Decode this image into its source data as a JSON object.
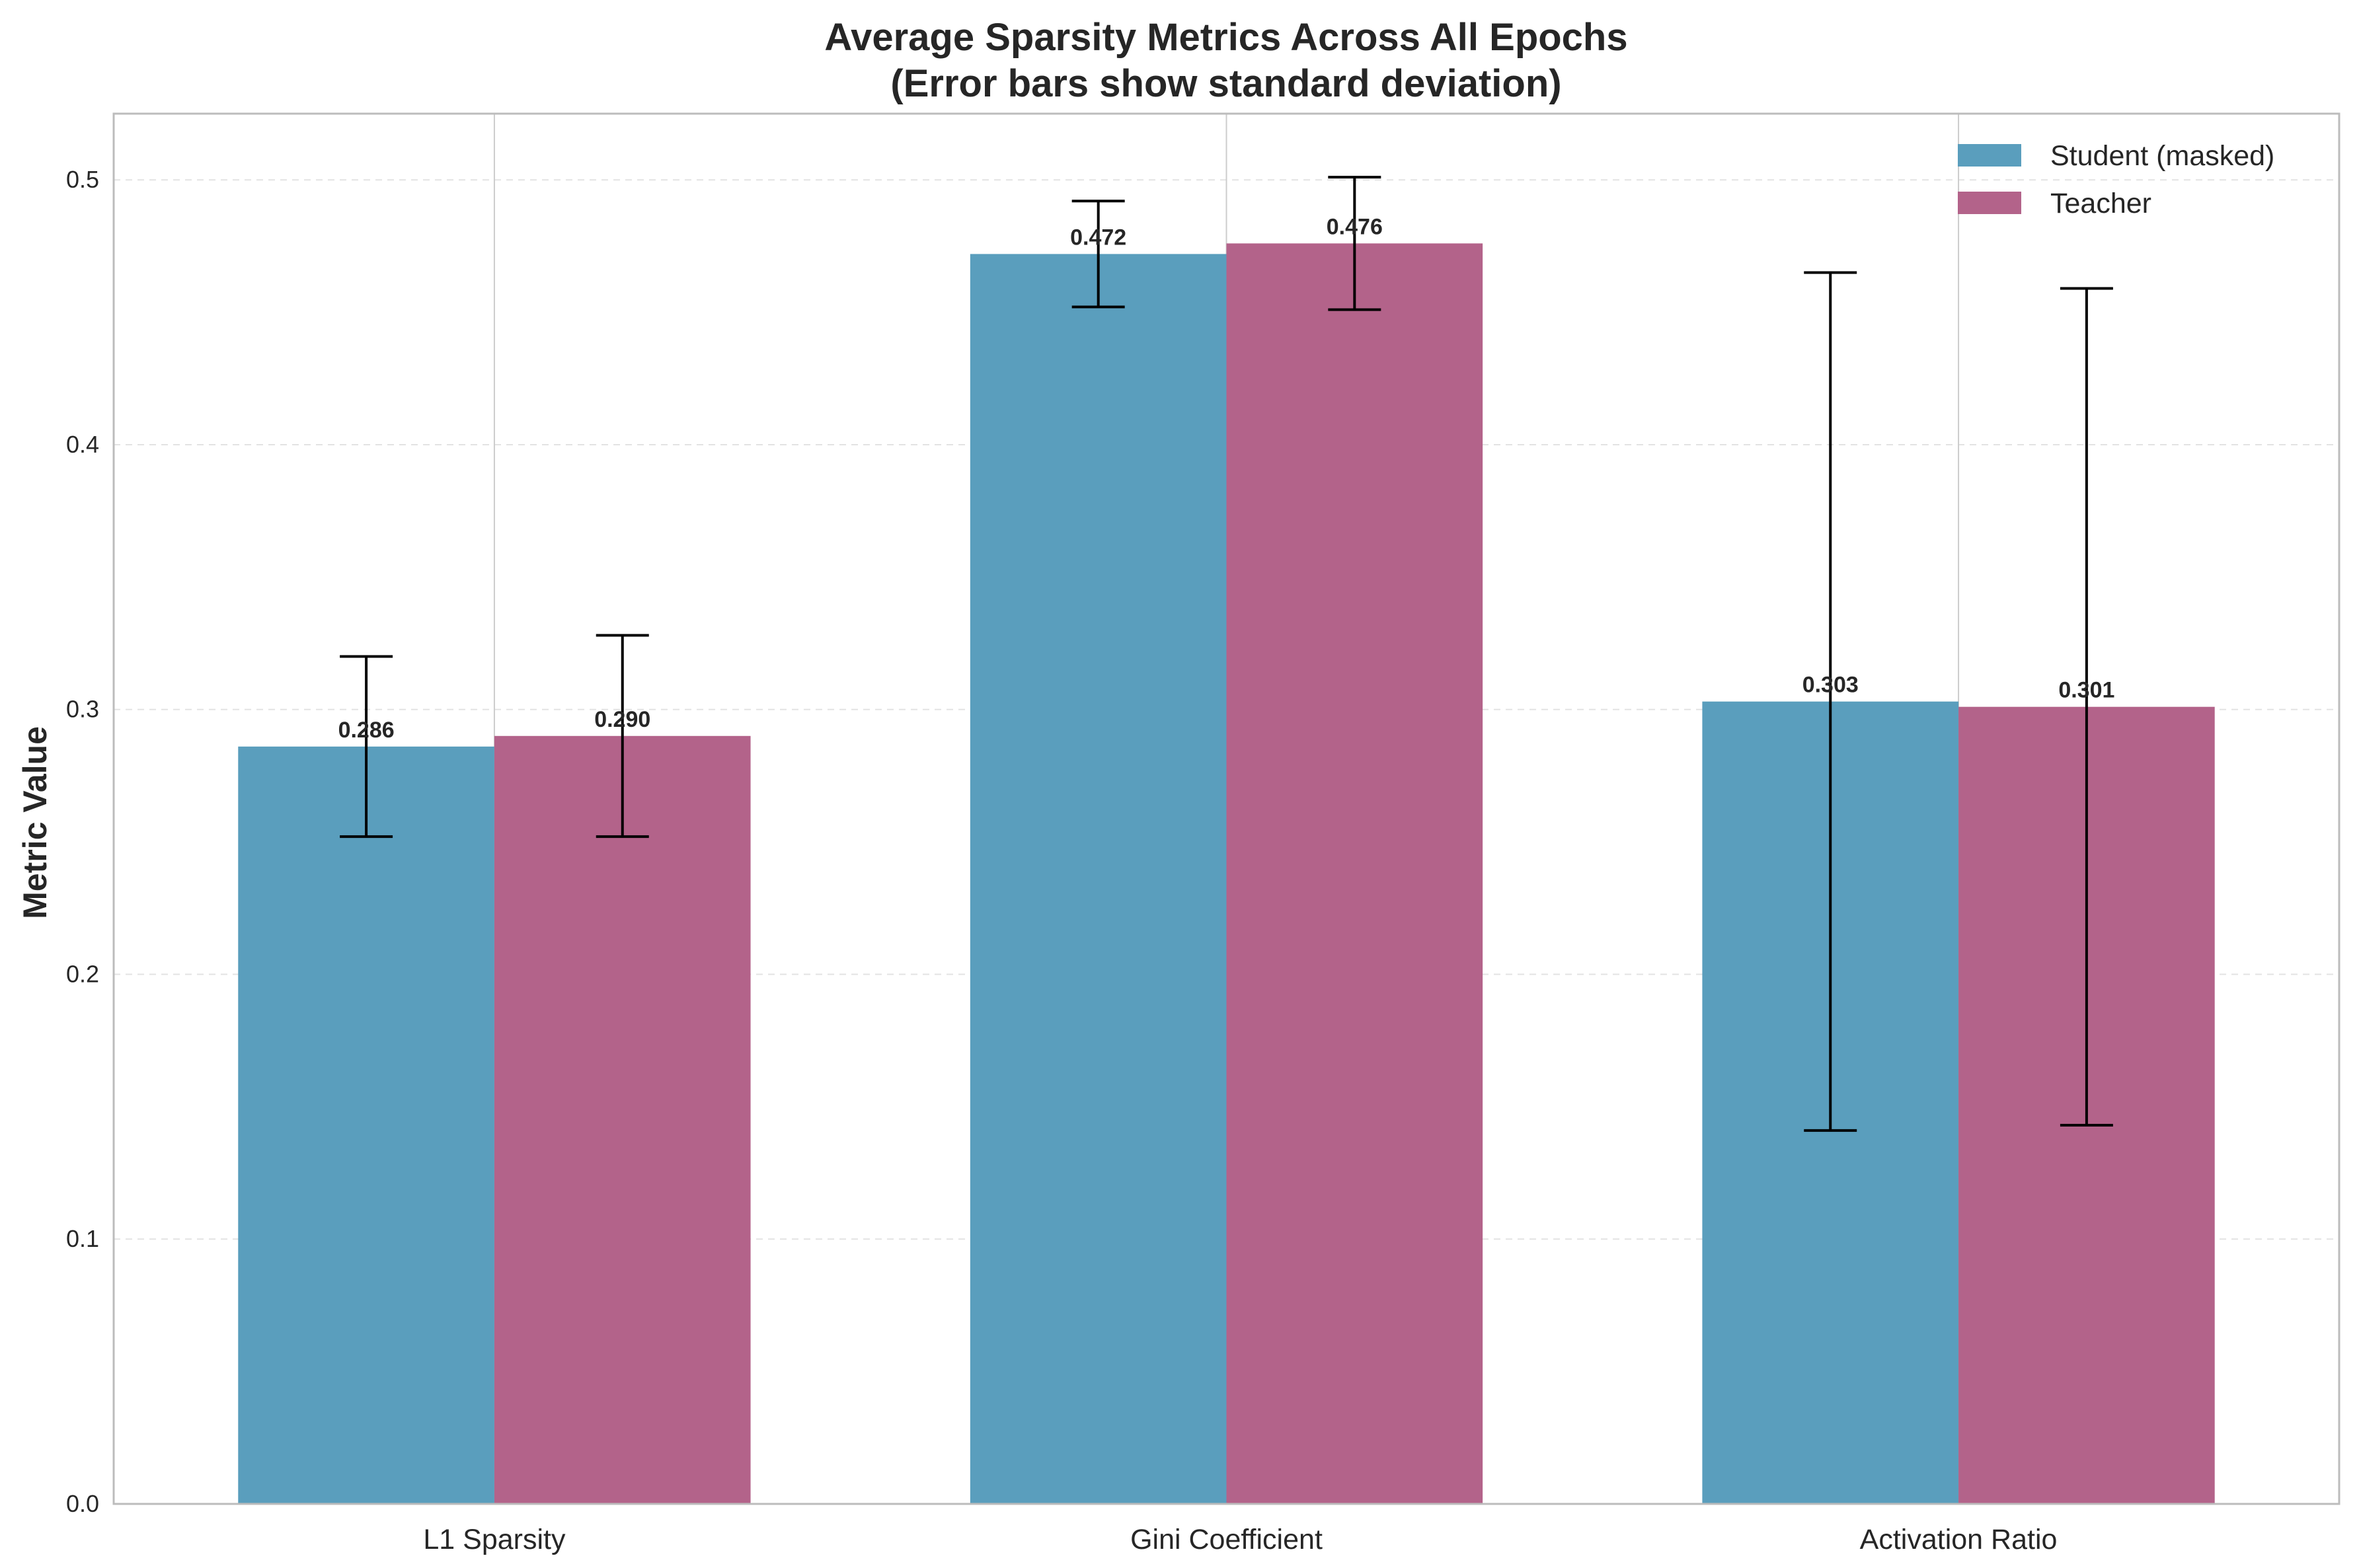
{
  "chart_data": {
    "type": "bar",
    "title_lines": [
      "Average Sparsity Metrics Across All Epochs",
      "(Error bars show standard deviation)"
    ],
    "xlabel": "",
    "ylabel": "Metric Value",
    "categories": [
      "L1 Sparsity",
      "Gini Coefficient",
      "Activation Ratio"
    ],
    "ylim": [
      0,
      0.525
    ],
    "yticks": [
      0.0,
      0.1,
      0.2,
      0.3,
      0.4,
      0.5
    ],
    "ytick_labels": [
      "0.0",
      "0.1",
      "0.2",
      "0.3",
      "0.4",
      "0.5"
    ],
    "grid": true,
    "legend_position": "top-right",
    "series": [
      {
        "name": "Student (masked)",
        "color": "#5A9EBD",
        "values": [
          0.286,
          0.472,
          0.303
        ],
        "errors": [
          0.034,
          0.02,
          0.162
        ],
        "value_labels": [
          "0.286",
          "0.472",
          "0.303"
        ]
      },
      {
        "name": "Teacher",
        "color": "#B3638A",
        "values": [
          0.29,
          0.476,
          0.301
        ],
        "errors": [
          0.038,
          0.025,
          0.158
        ],
        "value_labels": [
          "0.290",
          "0.476",
          "0.301"
        ]
      }
    ]
  }
}
